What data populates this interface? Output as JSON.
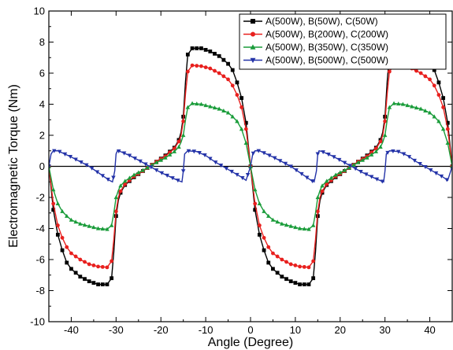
{
  "chart_data": {
    "type": "line",
    "title": "",
    "xlabel": "Angle (Degree)",
    "ylabel": "Electromagnetic Torque (Nm)",
    "xlim": [
      -45,
      45
    ],
    "ylim": [
      -10,
      10
    ],
    "x_ticks": [
      -40,
      -30,
      -20,
      -10,
      0,
      10,
      20,
      30,
      40
    ],
    "x_tick_labels": [
      "-40",
      "-30",
      "-20",
      "-10",
      "0",
      "10",
      "20",
      "30",
      "40"
    ],
    "y_ticks": [
      -10,
      -8,
      -6,
      -4,
      -2,
      0,
      2,
      4,
      6,
      8,
      10
    ],
    "y_tick_labels": [
      "-10",
      "-8",
      "-6",
      "-4",
      "-2",
      "0",
      "2",
      "4",
      "6",
      "8",
      "10"
    ],
    "grid": false,
    "zero_line": true,
    "legend_position": "top-right",
    "period": 45,
    "series": [
      {
        "name": "A(500W), B(50W), C(50W)",
        "color": "#000000",
        "marker": "square",
        "x": [
          -45,
          -44,
          -43,
          -42,
          -41,
          -40,
          -38,
          -36,
          -34,
          -32,
          -31,
          -30.5,
          -30,
          -29.5,
          -29,
          -28,
          -26,
          -24,
          -22.5,
          -21,
          -19,
          -17,
          -16,
          -15.5,
          -15,
          -14.5,
          -14,
          -13,
          -11,
          -9,
          -7,
          -5,
          -4,
          -3,
          -2,
          -1,
          0
        ],
        "y": [
          0,
          -2.8,
          -4.4,
          -5.4,
          -6.2,
          -6.6,
          -7.1,
          -7.4,
          -7.6,
          -7.6,
          -7.2,
          -5.5,
          -3.2,
          -2.2,
          -1.7,
          -1.2,
          -0.7,
          -0.3,
          0,
          0.3,
          0.7,
          1.2,
          1.7,
          2.2,
          3.2,
          5.5,
          7.2,
          7.6,
          7.6,
          7.4,
          7.1,
          6.6,
          6.2,
          5.4,
          4.4,
          2.8,
          0
        ]
      },
      {
        "name": "A(500W), B(200W), C(200W)",
        "color": "#e8201e",
        "marker": "circle",
        "x": [
          -45,
          -44,
          -43,
          -42,
          -41,
          -40,
          -38,
          -36,
          -34,
          -32,
          -31,
          -30.5,
          -30,
          -29.5,
          -29,
          -28,
          -26,
          -24,
          -22.5,
          -21,
          -19,
          -17,
          -16,
          -15.5,
          -15,
          -14.5,
          -14,
          -13,
          -11,
          -9,
          -7,
          -5,
          -4,
          -3,
          -2,
          -1,
          0
        ],
        "y": [
          0,
          -2.4,
          -3.8,
          -4.6,
          -5.2,
          -5.6,
          -6.0,
          -6.3,
          -6.45,
          -6.5,
          -6.1,
          -4.7,
          -2.9,
          -2.0,
          -1.6,
          -1.15,
          -0.65,
          -0.3,
          0,
          0.3,
          0.65,
          1.15,
          1.6,
          2.0,
          2.9,
          4.7,
          6.1,
          6.5,
          6.45,
          6.3,
          6.0,
          5.6,
          5.2,
          4.6,
          3.8,
          2.4,
          0
        ]
      },
      {
        "name": "A(500W), B(350W), C(350W)",
        "color": "#1a9c3a",
        "marker": "triangle-up",
        "x": [
          -45,
          -44,
          -43,
          -42,
          -41,
          -40,
          -38,
          -36,
          -34,
          -32,
          -31,
          -30.5,
          -30,
          -29.5,
          -29,
          -28,
          -26,
          -24,
          -22.5,
          -21,
          -19,
          -17,
          -16,
          -15.5,
          -15,
          -14.5,
          -14,
          -13,
          -11,
          -9,
          -7,
          -5,
          -4,
          -3,
          -2,
          -1,
          0
        ],
        "y": [
          0,
          -1.5,
          -2.4,
          -2.9,
          -3.2,
          -3.45,
          -3.7,
          -3.85,
          -4.0,
          -4.05,
          -3.8,
          -3.0,
          -2.0,
          -1.55,
          -1.25,
          -0.95,
          -0.55,
          -0.25,
          0,
          0.25,
          0.55,
          0.95,
          1.25,
          1.55,
          2.0,
          3.0,
          3.8,
          4.05,
          4.0,
          3.85,
          3.7,
          3.45,
          3.2,
          2.9,
          2.4,
          1.5,
          0
        ]
      },
      {
        "name": "A(500W), B(500W), C(500W)",
        "color": "#2433a8",
        "marker": "triangle-down",
        "x": [
          -45,
          -44.5,
          -44,
          -43,
          -40,
          -36,
          -33,
          -31.5,
          -30.8,
          -30.3,
          -30,
          -29.7,
          -29,
          -27,
          -25,
          -22.5,
          -20,
          -17,
          -15.8,
          -15.3,
          -15,
          -14.7,
          -14,
          -12,
          -10,
          -8,
          -5,
          -2,
          -1,
          0
        ],
        "y": [
          0,
          0.8,
          1.0,
          1.0,
          0.6,
          0.0,
          -0.6,
          -0.9,
          -1.0,
          -0.3,
          0.8,
          1.0,
          0.95,
          0.7,
          0.4,
          0,
          -0.4,
          -0.8,
          -0.95,
          -1.0,
          -0.3,
          0.8,
          1.0,
          0.95,
          0.7,
          0.3,
          -0.2,
          -0.7,
          -0.9,
          0
        ]
      }
    ]
  }
}
